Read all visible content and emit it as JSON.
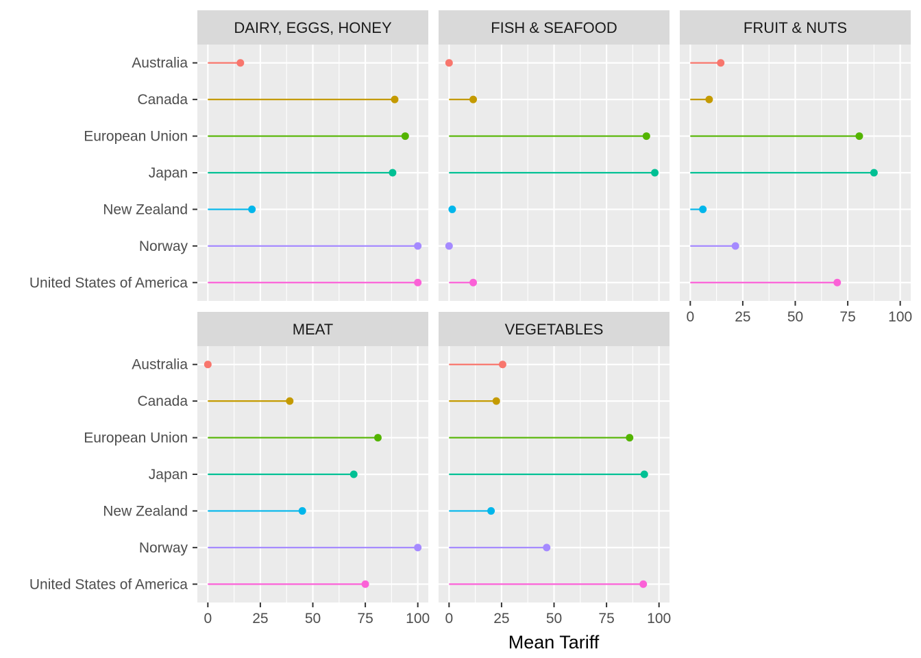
{
  "chart_data": {
    "type": "lollipop",
    "xlabel": "Mean Tariff",
    "ylabel": "",
    "xlim": [
      -5,
      105
    ],
    "x_ticks": [
      0,
      25,
      50,
      75,
      100
    ],
    "grid": true,
    "legend": "none",
    "countries": [
      "Australia",
      "Canada",
      "European Union",
      "Japan",
      "New Zealand",
      "Norway",
      "United States of America"
    ],
    "colors": {
      "Australia": "#F8766D",
      "Canada": "#C49A00",
      "European Union": "#53B400",
      "Japan": "#00C094",
      "New Zealand": "#00B6EB",
      "Norway": "#A58AFF",
      "United States of America": "#FB61D7"
    },
    "panels": [
      {
        "name": "DAIRY, EGGS, HONEY",
        "values": {
          "Australia": 15.5,
          "Canada": 89,
          "European Union": 94,
          "Japan": 88,
          "New Zealand": 21,
          "Norway": 100,
          "United States of America": 100
        }
      },
      {
        "name": "FISH & SEAFOOD",
        "values": {
          "Australia": 0,
          "Canada": 11.5,
          "European Union": 94,
          "Japan": 98,
          "New Zealand": 1.5,
          "Norway": 0,
          "United States of America": 11.5
        }
      },
      {
        "name": "FRUIT & NUTS",
        "values": {
          "Australia": 14.5,
          "Canada": 9,
          "European Union": 80.5,
          "Japan": 87.5,
          "New Zealand": 6,
          "Norway": 21.5,
          "United States of America": 70
        }
      },
      {
        "name": "MEAT",
        "values": {
          "Australia": 0,
          "Canada": 39,
          "European Union": 81,
          "Japan": 69.5,
          "New Zealand": 45,
          "Norway": 100,
          "United States of America": 75
        }
      },
      {
        "name": "VEGETABLES",
        "values": {
          "Australia": 25.5,
          "Canada": 22.5,
          "European Union": 86,
          "Japan": 93,
          "New Zealand": 20,
          "Norway": 46.5,
          "United States of America": 92.5
        }
      }
    ]
  }
}
